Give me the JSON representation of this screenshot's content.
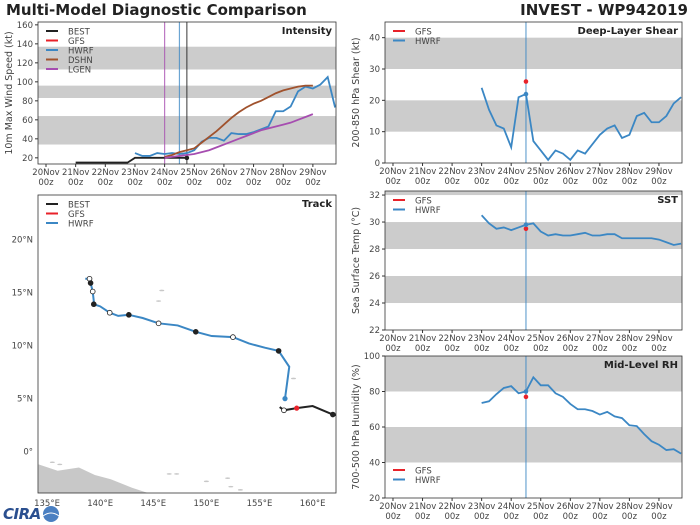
{
  "header": {
    "left_title": "Multi-Model Diagnostic Comparison",
    "right_title": "INVEST - WP942019"
  },
  "logo": "CIRA",
  "colors": {
    "BEST": "#222222",
    "GFS": "#e8222a",
    "HWRF": "#3b87c4",
    "DSHN": "#a0522d",
    "LGEN": "#a64db0",
    "band": "#cccccc",
    "land": "#c8c8c8"
  },
  "time_ticks": [
    [
      "20Nov",
      "00z"
    ],
    [
      "21Nov",
      "00z"
    ],
    [
      "22Nov",
      "00z"
    ],
    [
      "23Nov",
      "00z"
    ],
    [
      "24Nov",
      "00z"
    ],
    [
      "25Nov",
      "00z"
    ],
    [
      "26Nov",
      "00z"
    ],
    [
      "27Nov",
      "00z"
    ],
    [
      "28Nov",
      "00z"
    ],
    [
      "29Nov",
      "00z"
    ]
  ],
  "chart_data": [
    {
      "type": "line",
      "title": "Intensity",
      "ylabel": "10m Max Wind Speed (kt)",
      "x_units": "days since 20Nov 00z",
      "xlim": [
        -0.27,
        9.78
      ],
      "ylim": [
        13.5,
        163
      ],
      "yticks": [
        20,
        40,
        60,
        80,
        100,
        120,
        140,
        160
      ],
      "bands": [
        [
          34,
          64
        ],
        [
          83,
          96
        ],
        [
          113,
          137
        ]
      ],
      "legend": "top-left",
      "vlines": [
        {
          "x": 4.0,
          "series": "LGEN"
        },
        {
          "x": 4.5,
          "series": "HWRF"
        },
        {
          "x": 4.75,
          "series": "BEST"
        }
      ],
      "series": [
        {
          "name": "BEST",
          "x": [
            1,
            2.75,
            3,
            4.75
          ],
          "y": [
            15,
            15,
            20,
            20
          ],
          "marker_last": true
        },
        {
          "name": "GFS",
          "x": [],
          "y": []
        },
        {
          "name": "HWRF",
          "x": [
            3,
            3.25,
            3.5,
            3.75,
            4,
            4.25,
            4.5,
            4.75,
            5,
            5.25,
            5.5,
            5.75,
            6,
            6.25,
            6.5,
            6.75,
            7,
            7.25,
            7.5,
            7.75,
            8,
            8.25,
            8.5,
            8.75,
            9,
            9.25,
            9.5,
            9.75
          ],
          "y": [
            25,
            22,
            22,
            25,
            24,
            25,
            24,
            25,
            28,
            37,
            41,
            41,
            38,
            46,
            45,
            45,
            47,
            50,
            53,
            69,
            69,
            74,
            90,
            95,
            93,
            97,
            105,
            73
          ]
        },
        {
          "name": "DSHN",
          "x": [
            4,
            4.25,
            4.5,
            4.75,
            5,
            5.25,
            5.5,
            5.75,
            6,
            6.25,
            6.5,
            6.75,
            7,
            7.25,
            7.5,
            7.75,
            8,
            8.25,
            8.5,
            8.75,
            9
          ],
          "y": [
            21,
            23,
            26,
            28,
            30,
            36,
            42,
            48,
            55,
            62,
            68,
            73,
            77,
            80,
            84,
            88,
            91,
            93,
            95,
            96,
            96
          ]
        },
        {
          "name": "LGEN",
          "x": [
            4,
            4.25,
            4.5,
            4.75,
            5,
            5.25,
            5.5,
            5.75,
            6,
            6.25,
            6.5,
            6.75,
            7,
            7.25,
            7.5,
            7.75,
            8,
            8.25,
            8.5,
            8.75,
            9
          ],
          "y": [
            20,
            21,
            22,
            23,
            24,
            26,
            28,
            31,
            34,
            37,
            40,
            43,
            46,
            49,
            51,
            53,
            55,
            57,
            60,
            63,
            66
          ]
        }
      ]
    },
    {
      "type": "line",
      "title": "Deep-Layer Shear",
      "ylabel": "200-850 hPa Shear (kt)",
      "xlim": [
        -0.27,
        9.78
      ],
      "ylim": [
        0,
        45
      ],
      "yticks": [
        0,
        10,
        20,
        30,
        40
      ],
      "bands": [
        [
          10,
          20
        ],
        [
          30,
          40
        ]
      ],
      "legend": "top-left",
      "vlines": [
        {
          "x": 4.5,
          "series": "HWRF"
        }
      ],
      "series": [
        {
          "name": "GFS",
          "x": [
            4.5
          ],
          "y": [
            26
          ]
        },
        {
          "name": "HWRF",
          "x": [
            3,
            3.25,
            3.5,
            3.75,
            4,
            4.25,
            4.5,
            4.75,
            5,
            5.25,
            5.5,
            5.75,
            6,
            6.25,
            6.5,
            6.75,
            7,
            7.25,
            7.5,
            7.75,
            8,
            8.25,
            8.5,
            8.75,
            9,
            9.25,
            9.5,
            9.75
          ],
          "y": [
            24,
            17,
            12,
            11,
            5,
            21,
            22,
            7,
            4,
            1,
            4,
            3,
            1,
            4,
            3,
            6,
            9,
            11,
            12,
            8,
            9,
            15,
            16,
            13,
            13,
            15,
            19,
            21
          ],
          "marker_at": 4.5
        }
      ]
    },
    {
      "type": "line",
      "title": "SST",
      "ylabel": "Sea Surface Temp (°C)",
      "xlim": [
        -0.27,
        9.78
      ],
      "ylim": [
        22,
        32.3
      ],
      "yticks": [
        22,
        24,
        26,
        28,
        30,
        32
      ],
      "bands": [
        [
          24,
          26
        ],
        [
          28,
          30
        ],
        [
          32,
          34
        ]
      ],
      "legend": "top-left",
      "vlines": [
        {
          "x": 4.5,
          "series": "HWRF"
        }
      ],
      "series": [
        {
          "name": "GFS",
          "x": [
            4.5
          ],
          "y": [
            29.5
          ]
        },
        {
          "name": "HWRF",
          "x": [
            3,
            3.25,
            3.5,
            3.75,
            4,
            4.25,
            4.5,
            4.75,
            5,
            5.25,
            5.5,
            5.75,
            6,
            6.25,
            6.5,
            6.75,
            7,
            7.25,
            7.5,
            7.75,
            8,
            8.25,
            8.5,
            8.75,
            9,
            9.25,
            9.5,
            9.75
          ],
          "y": [
            30.5,
            29.9,
            29.5,
            29.6,
            29.4,
            29.6,
            29.8,
            29.9,
            29.3,
            29.0,
            29.1,
            29.0,
            29.0,
            29.1,
            29.2,
            29.0,
            29.0,
            29.1,
            29.1,
            28.8,
            28.8,
            28.8,
            28.8,
            28.8,
            28.7,
            28.5,
            28.3,
            28.4
          ],
          "marker_at": 4.5
        }
      ]
    },
    {
      "type": "line",
      "title": "Mid-Level RH",
      "ylabel": "700-500 hPa Humidity (%)",
      "xlim": [
        -0.27,
        9.78
      ],
      "ylim": [
        20,
        100
      ],
      "yticks": [
        20,
        40,
        60,
        80,
        100
      ],
      "bands": [
        [
          40,
          60
        ],
        [
          80,
          100
        ]
      ],
      "legend": "bottom-left",
      "vlines": [
        {
          "x": 4.5,
          "series": "HWRF"
        }
      ],
      "series": [
        {
          "name": "GFS",
          "x": [
            4.5
          ],
          "y": [
            77
          ]
        },
        {
          "name": "HWRF",
          "x": [
            3,
            3.25,
            3.5,
            3.75,
            4,
            4.25,
            4.5,
            4.75,
            5,
            5.25,
            5.5,
            5.75,
            6,
            6.25,
            6.5,
            6.75,
            7,
            7.25,
            7.5,
            7.75,
            8,
            8.25,
            8.5,
            8.75,
            9,
            9.25,
            9.5,
            9.75
          ],
          "y": [
            73.5,
            74.5,
            78.5,
            82,
            83,
            79,
            80,
            88,
            83.5,
            83.5,
            79,
            77,
            73,
            70,
            70,
            69,
            67,
            68.5,
            66,
            65,
            61,
            60.5,
            56,
            52,
            50,
            47,
            47.5,
            45
          ],
          "marker_at": 4.5
        }
      ]
    },
    {
      "type": "map",
      "title": "Track",
      "legend": "top-left",
      "lon_lim": [
        134.15,
        162.2
      ],
      "lat_lim": [
        -3.9,
        24.2
      ],
      "lon_ticks": [
        [
          135,
          "135°E"
        ],
        [
          140,
          "140°E"
        ],
        [
          145,
          "145°E"
        ],
        [
          150,
          "150°E"
        ],
        [
          155,
          "155°E"
        ],
        [
          160,
          "160°E"
        ]
      ],
      "lat_ticks": [
        [
          0,
          "0°"
        ],
        [
          5,
          "5°N"
        ],
        [
          10,
          "10°N"
        ],
        [
          15,
          "15°N"
        ],
        [
          20,
          "20°N"
        ]
      ],
      "series": [
        {
          "name": "BEST",
          "lon": [
            156.9,
            157.3,
            158.5,
            160,
            161.9,
            162.5
          ],
          "lat": [
            4.2,
            3.9,
            4.1,
            4.3,
            3.5,
            3.4
          ],
          "markers": [
            [
              157.3,
              3.9,
              "open"
            ],
            [
              161.9,
              3.5,
              "filled"
            ]
          ]
        },
        {
          "name": "GFS",
          "lon": [
            158.5
          ],
          "lat": [
            4.1
          ]
        },
        {
          "name": "HWRF",
          "lon": [
            138.6,
            139,
            139.1,
            139.3,
            139.4,
            139.4,
            140,
            140.9,
            141.7,
            142.7,
            144,
            145.5,
            147.3,
            149,
            150.5,
            152.5,
            154,
            155.5,
            156.8,
            157.8,
            157.4
          ],
          "lat": [
            16.3,
            16.3,
            15.9,
            15.1,
            14.2,
            13.9,
            13.7,
            13.1,
            12.8,
            12.9,
            12.6,
            12.1,
            11.9,
            11.3,
            10.9,
            10.8,
            10.2,
            9.8,
            9.5,
            8.0,
            5.0
          ],
          "markers": [
            [
              139,
              16.3,
              "open"
            ],
            [
              139.1,
              15.9,
              "filled"
            ],
            [
              139.3,
              15.1,
              "open"
            ],
            [
              139.4,
              13.9,
              "filled"
            ],
            [
              140.9,
              13.1,
              "open"
            ],
            [
              142.7,
              12.9,
              "filled"
            ],
            [
              145.5,
              12.1,
              "open"
            ],
            [
              149,
              11.3,
              "filled"
            ],
            [
              152.5,
              10.8,
              "open"
            ],
            [
              156.8,
              9.5,
              "filled"
            ],
            [
              157.4,
              5.0,
              "start"
            ]
          ]
        }
      ]
    }
  ]
}
